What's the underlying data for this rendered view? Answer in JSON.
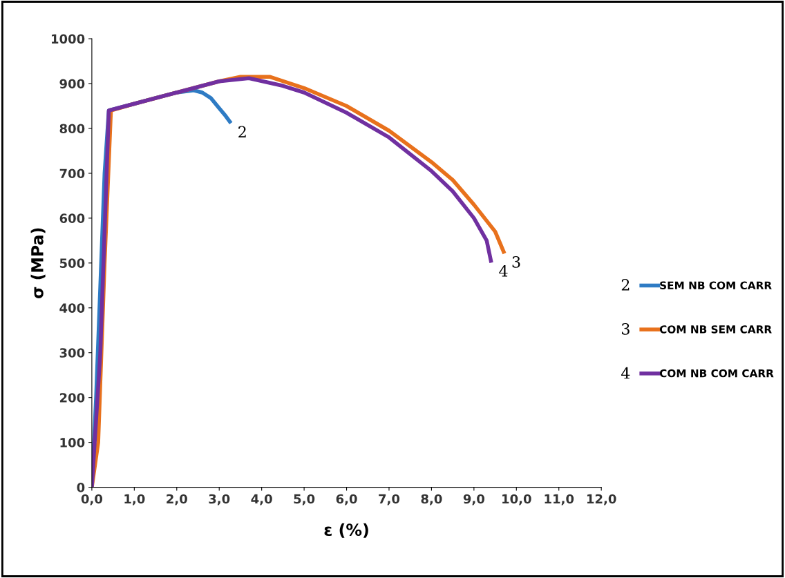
{
  "chart_data": {
    "type": "line",
    "xlabel": "ε (%)",
    "ylabel": "σ (MPa)",
    "xlim": [
      0,
      12
    ],
    "ylim": [
      0,
      1000
    ],
    "xticks": [
      {
        "value": 0,
        "label": "0,0"
      },
      {
        "value": 1,
        "label": "1,0"
      },
      {
        "value": 2,
        "label": "2,0"
      },
      {
        "value": 3,
        "label": "3,0"
      },
      {
        "value": 4,
        "label": "4,0"
      },
      {
        "value": 5,
        "label": "5,0"
      },
      {
        "value": 6,
        "label": "6,0"
      },
      {
        "value": 7,
        "label": "7,0"
      },
      {
        "value": 8,
        "label": "8,0"
      },
      {
        "value": 9,
        "label": "9,0"
      },
      {
        "value": 10,
        "label": "10,0"
      },
      {
        "value": 11,
        "label": "11,0"
      },
      {
        "value": 12,
        "label": "12,0"
      }
    ],
    "yticks": [
      0,
      100,
      200,
      300,
      400,
      500,
      600,
      700,
      800,
      900,
      1000
    ],
    "grid": false,
    "legend": "right",
    "marker": "none",
    "line_style": "solid",
    "series": [
      {
        "name": "SEM NB COM CARR",
        "color": "#2e7bc4",
        "x": [
          0,
          0.1,
          0.2,
          0.3,
          0.4,
          0.6,
          1.0,
          1.5,
          2.0,
          2.4,
          2.6,
          2.8,
          3.0,
          3.15,
          3.25
        ],
        "values": [
          0,
          200,
          450,
          700,
          840,
          845,
          855,
          868,
          880,
          885,
          880,
          868,
          845,
          828,
          815
        ]
      },
      {
        "name": "COM NB SEM CARR",
        "color": "#e8711c",
        "x": [
          0,
          0.15,
          0.3,
          0.45,
          1.0,
          2.0,
          3.0,
          3.5,
          4.2,
          5.0,
          6.0,
          7.0,
          8.0,
          8.5,
          9.0,
          9.5,
          9.7
        ],
        "values": [
          0,
          100,
          500,
          840,
          855,
          880,
          905,
          915,
          915,
          890,
          850,
          795,
          725,
          685,
          630,
          570,
          525
        ]
      },
      {
        "name": "COM NB COM CARR",
        "color": "#7030a0",
        "x": [
          0,
          0.2,
          0.4,
          1.0,
          2.0,
          3.0,
          3.7,
          4.5,
          5.0,
          6.0,
          7.0,
          8.0,
          8.5,
          9.0,
          9.3,
          9.4
        ],
        "values": [
          0,
          300,
          840,
          855,
          880,
          905,
          912,
          895,
          880,
          835,
          780,
          705,
          660,
          600,
          550,
          505
        ]
      }
    ],
    "annotations": [
      {
        "text": "2",
        "x": 3.25,
        "y": 815
      },
      {
        "text": "3",
        "x": 9.7,
        "y": 525
      },
      {
        "text": "4",
        "x": 9.4,
        "y": 505
      },
      "2",
      "3",
      "4"
    ]
  }
}
